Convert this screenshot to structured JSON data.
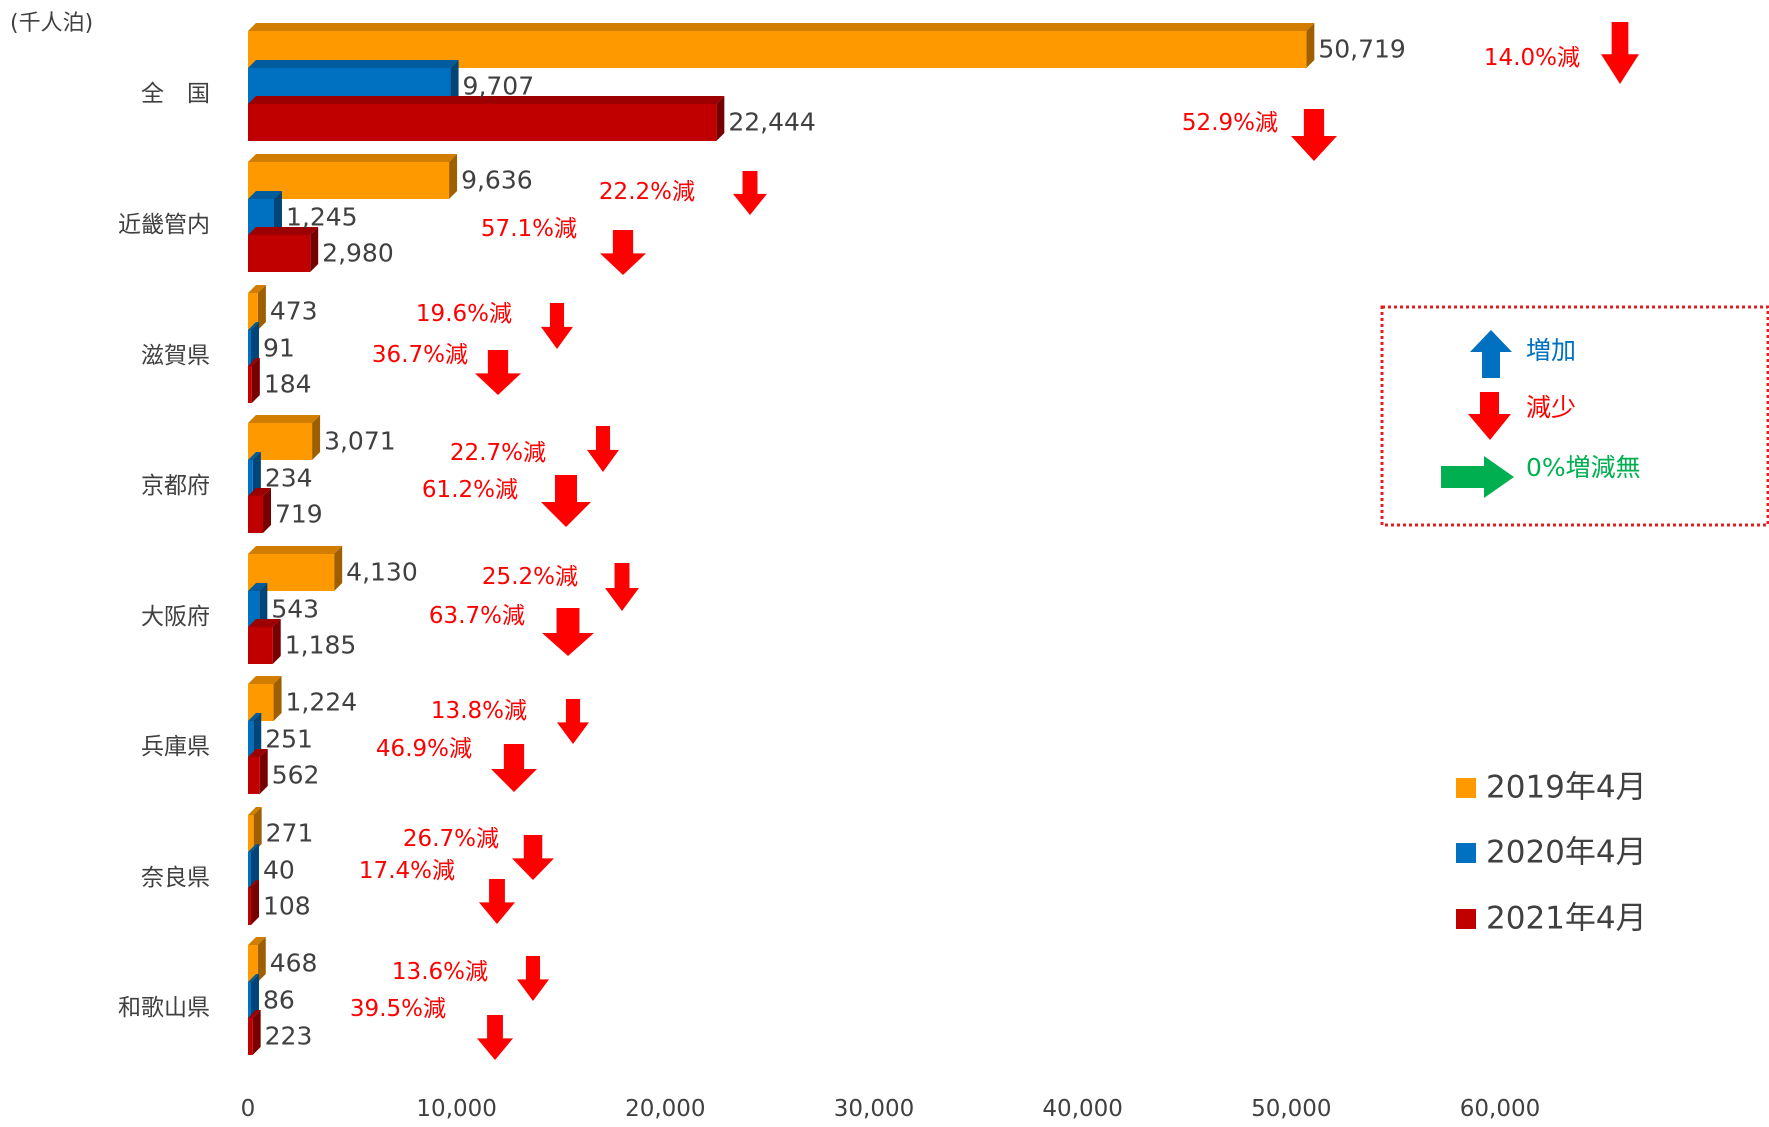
{
  "chart_data": {
    "type": "bar",
    "orientation": "horizontal",
    "unit_label": "(千人泊)",
    "categories": [
      "全　国",
      "近畿管内",
      "滋賀県",
      "京都府",
      "大阪府",
      "兵庫県",
      "奈良県",
      "和歌山県"
    ],
    "series": [
      {
        "name": "2019年4月",
        "color": "#FF9900",
        "values": [
          50719,
          9636,
          473,
          3071,
          4130,
          1224,
          271,
          468
        ],
        "labels": [
          "50,719",
          "9,636",
          "473",
          "3,071",
          "4,130",
          "1,224",
          "271",
          "468"
        ]
      },
      {
        "name": "2020年4月",
        "color": "#0070C0",
        "values": [
          9707,
          1245,
          91,
          234,
          543,
          251,
          40,
          86
        ],
        "labels": [
          "9,707",
          "1,245",
          "91",
          "234",
          "543",
          "251",
          "40",
          "86"
        ]
      },
      {
        "name": "2021年4月",
        "color": "#C00000",
        "values": [
          22444,
          2980,
          184,
          719,
          1185,
          562,
          108,
          223
        ],
        "labels": [
          "22,444",
          "2,980",
          "184",
          "719",
          "1,185",
          "562",
          "108",
          "223"
        ]
      }
    ],
    "xlim": [
      0,
      60000
    ],
    "x_ticks": [
      0,
      10000,
      20000,
      30000,
      40000,
      50000,
      60000
    ],
    "x_tick_labels": [
      "0",
      "10,000",
      "20,000",
      "30,000",
      "40,000",
      "50,000",
      "60,000"
    ],
    "grid": false,
    "annotations": [
      {
        "category": "全　国",
        "a": "14.0%減",
        "b": "52.9%減"
      },
      {
        "category": "近畿管内",
        "a": "22.2%減",
        "b": "57.1%減"
      },
      {
        "category": "滋賀県",
        "a": "19.6%減",
        "b": "36.7%減"
      },
      {
        "category": "京都府",
        "a": "22.7%減",
        "b": "61.2%減"
      },
      {
        "category": "大阪府",
        "a": "25.2%減",
        "b": "63.7%減"
      },
      {
        "category": "兵庫県",
        "a": "13.8%減",
        "b": "46.9%減"
      },
      {
        "category": "奈良県",
        "a": "26.7%減",
        "b": "17.4%減"
      },
      {
        "category": "和歌山県",
        "a": "13.6%減",
        "b": "39.5%減"
      }
    ],
    "arrow_legend": [
      {
        "label": "増加",
        "color": "#0070C0",
        "direction": "up"
      },
      {
        "label": "減少",
        "color": "#FF0000",
        "direction": "down"
      },
      {
        "label": "0%増減無",
        "color": "#00B050",
        "direction": "right"
      }
    ],
    "legend_position": "bottom-right"
  }
}
